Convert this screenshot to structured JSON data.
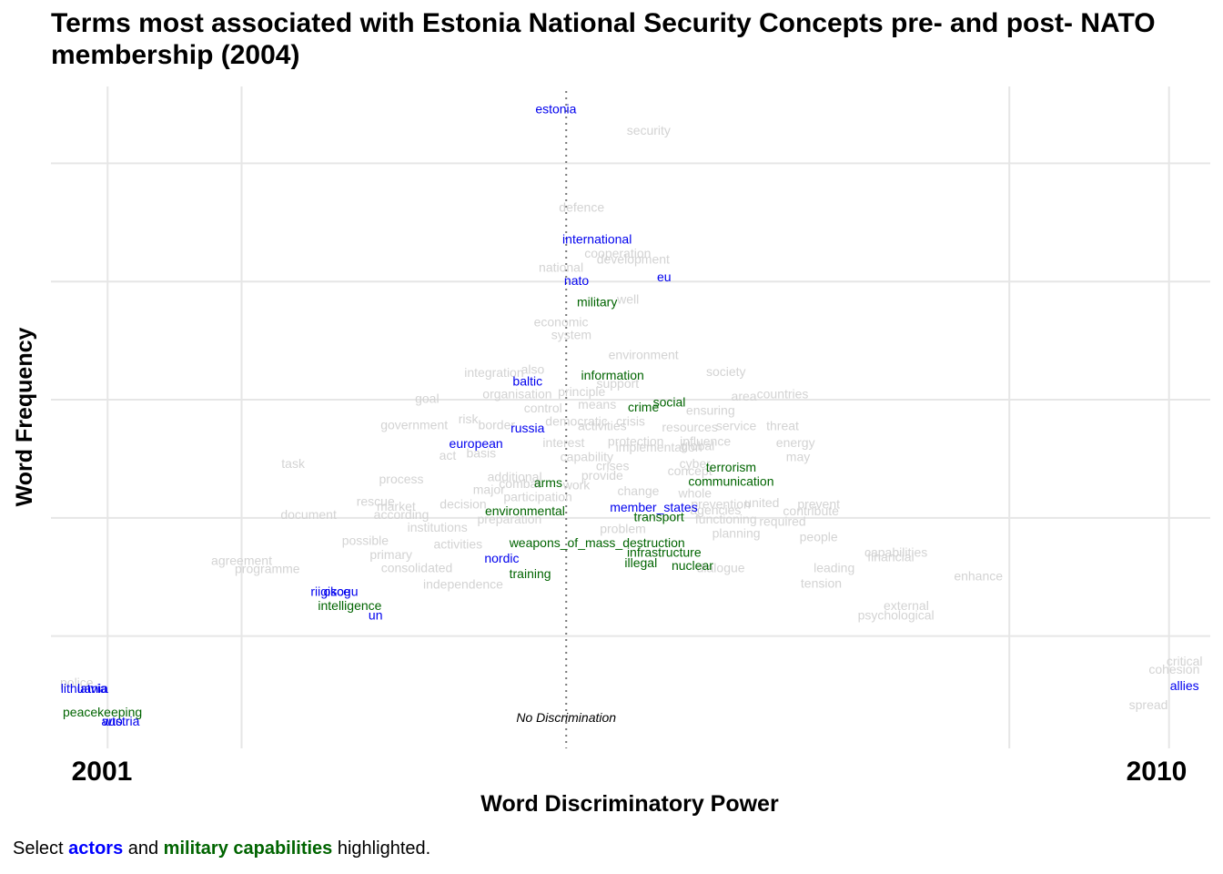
{
  "chart_data": {
    "type": "scatter",
    "title_line1": "Terms most associated with Estonia National Security Concepts pre- and post- NATO",
    "title_line2": "membership (2004)",
    "xlabel": "Word Discriminatory Power",
    "ylabel": "Word Frequency",
    "x_end_labels": [
      "2001",
      "2010"
    ],
    "reference_line_label": "No Discrimination",
    "xlim": [
      -1.0,
      1.25
    ],
    "ylim": [
      0.0,
      5.6
    ],
    "grid": true,
    "legend": "none",
    "colors": {
      "actors": "#0000ee",
      "military": "#006400",
      "other": "#d3d3d3"
    },
    "caption": {
      "prefix": "Select ",
      "actors": "actors",
      "middle": " and ",
      "military": "military capabilities",
      "suffix": " highlighted."
    },
    "actors": [
      {
        "word": "estonia",
        "x": -0.02,
        "y": 5.4
      },
      {
        "word": "international",
        "x": 0.06,
        "y": 4.3
      },
      {
        "word": "nato",
        "x": 0.02,
        "y": 3.95
      },
      {
        "word": "eu",
        "x": 0.19,
        "y": 3.98
      },
      {
        "word": "baltic",
        "x": -0.075,
        "y": 3.1
      },
      {
        "word": "russia",
        "x": -0.075,
        "y": 2.7
      },
      {
        "word": "european",
        "x": -0.175,
        "y": 2.57
      },
      {
        "word": "member_states",
        "x": 0.17,
        "y": 2.03
      },
      {
        "word": "nordic",
        "x": -0.125,
        "y": 1.6
      },
      {
        "word": "riigikogu",
        "x": -0.45,
        "y": 1.32
      },
      {
        "word": "osce",
        "x": -0.445,
        "y": 1.32
      },
      {
        "word": "un",
        "x": -0.37,
        "y": 1.12
      },
      {
        "word": "lithuania",
        "x": -0.935,
        "y": 0.5
      },
      {
        "word": "latvia",
        "x": -0.92,
        "y": 0.5
      },
      {
        "word": "austria",
        "x": -0.865,
        "y": 0.22
      },
      {
        "word": "wto",
        "x": -0.88,
        "y": 0.22
      },
      {
        "word": "allies",
        "x": 1.2,
        "y": 0.52
      }
    ],
    "military": [
      {
        "word": "military",
        "x": 0.06,
        "y": 3.77
      },
      {
        "word": "information",
        "x": 0.09,
        "y": 3.15
      },
      {
        "word": "social",
        "x": 0.2,
        "y": 2.92
      },
      {
        "word": "crime",
        "x": 0.15,
        "y": 2.88
      },
      {
        "word": "terrorism",
        "x": 0.32,
        "y": 2.37
      },
      {
        "word": "communication",
        "x": 0.32,
        "y": 2.25
      },
      {
        "word": "arms",
        "x": -0.035,
        "y": 2.24
      },
      {
        "word": "environmental",
        "x": -0.08,
        "y": 2.0
      },
      {
        "word": "transport",
        "x": 0.18,
        "y": 1.95
      },
      {
        "word": "weapons_of_mass_destruction",
        "x": 0.06,
        "y": 1.73
      },
      {
        "word": "infrastructure",
        "x": 0.19,
        "y": 1.65
      },
      {
        "word": "illegal",
        "x": 0.145,
        "y": 1.56
      },
      {
        "word": "nuclear",
        "x": 0.245,
        "y": 1.54
      },
      {
        "word": "training",
        "x": -0.07,
        "y": 1.47
      },
      {
        "word": "intelligence",
        "x": -0.42,
        "y": 1.2
      },
      {
        "word": "peacekeeping",
        "x": -0.9,
        "y": 0.3
      }
    ],
    "other_words": [
      {
        "word": "security",
        "x": 0.16,
        "y": 5.22
      },
      {
        "word": "defence",
        "x": 0.03,
        "y": 4.57
      },
      {
        "word": "cooperation",
        "x": 0.1,
        "y": 4.18
      },
      {
        "word": "development",
        "x": 0.13,
        "y": 4.13
      },
      {
        "word": "national",
        "x": -0.01,
        "y": 4.06
      },
      {
        "word": "well",
        "x": 0.12,
        "y": 3.79
      },
      {
        "word": "economic",
        "x": -0.01,
        "y": 3.6
      },
      {
        "word": "system",
        "x": 0.01,
        "y": 3.49
      },
      {
        "word": "environment",
        "x": 0.15,
        "y": 3.32
      },
      {
        "word": "integration",
        "x": -0.14,
        "y": 3.17
      },
      {
        "word": "also",
        "x": -0.065,
        "y": 3.2
      },
      {
        "word": "society",
        "x": 0.31,
        "y": 3.18
      },
      {
        "word": "support",
        "x": 0.1,
        "y": 3.08
      },
      {
        "word": "principle",
        "x": 0.03,
        "y": 3.01
      },
      {
        "word": "organisation",
        "x": -0.095,
        "y": 2.99
      },
      {
        "word": "area",
        "x": 0.345,
        "y": 2.97
      },
      {
        "word": "countries",
        "x": 0.42,
        "y": 2.99
      },
      {
        "word": "goal",
        "x": -0.27,
        "y": 2.95
      },
      {
        "word": "means",
        "x": 0.06,
        "y": 2.9
      },
      {
        "word": "control",
        "x": -0.045,
        "y": 2.87
      },
      {
        "word": "ensuring",
        "x": 0.28,
        "y": 2.85
      },
      {
        "word": "risk",
        "x": -0.19,
        "y": 2.78
      },
      {
        "word": "government",
        "x": -0.295,
        "y": 2.73
      },
      {
        "word": "border",
        "x": -0.135,
        "y": 2.73
      },
      {
        "word": "democratic",
        "x": 0.02,
        "y": 2.76
      },
      {
        "word": "crisis",
        "x": 0.125,
        "y": 2.76
      },
      {
        "word": "activities",
        "x": 0.07,
        "y": 2.72
      },
      {
        "word": "resources",
        "x": 0.24,
        "y": 2.71
      },
      {
        "word": "service",
        "x": 0.33,
        "y": 2.72
      },
      {
        "word": "threat",
        "x": 0.42,
        "y": 2.72
      },
      {
        "word": "protection",
        "x": 0.135,
        "y": 2.59
      },
      {
        "word": "influence",
        "x": 0.27,
        "y": 2.59
      },
      {
        "word": "global",
        "x": 0.255,
        "y": 2.55
      },
      {
        "word": "energy",
        "x": 0.445,
        "y": 2.58
      },
      {
        "word": "implementation",
        "x": 0.18,
        "y": 2.54
      },
      {
        "word": "interest",
        "x": -0.005,
        "y": 2.58
      },
      {
        "word": "act",
        "x": -0.23,
        "y": 2.47
      },
      {
        "word": "basis",
        "x": -0.165,
        "y": 2.49
      },
      {
        "word": "capability",
        "x": 0.04,
        "y": 2.46
      },
      {
        "word": "may",
        "x": 0.45,
        "y": 2.46
      },
      {
        "word": "task",
        "x": -0.53,
        "y": 2.4
      },
      {
        "word": "cyber",
        "x": 0.25,
        "y": 2.4
      },
      {
        "word": "crises",
        "x": 0.09,
        "y": 2.38
      },
      {
        "word": "concept",
        "x": 0.24,
        "y": 2.34
      },
      {
        "word": "provide",
        "x": 0.07,
        "y": 2.3
      },
      {
        "word": "process",
        "x": -0.32,
        "y": 2.27
      },
      {
        "word": "additional",
        "x": -0.1,
        "y": 2.29
      },
      {
        "word": "combat",
        "x": -0.09,
        "y": 2.23
      },
      {
        "word": "work",
        "x": 0.02,
        "y": 2.22
      },
      {
        "word": "major",
        "x": -0.15,
        "y": 2.18
      },
      {
        "word": "change",
        "x": 0.14,
        "y": 2.17
      },
      {
        "word": "whole",
        "x": 0.25,
        "y": 2.15
      },
      {
        "word": "participation",
        "x": -0.055,
        "y": 2.12
      },
      {
        "word": "prevention",
        "x": 0.3,
        "y": 2.06
      },
      {
        "word": "united",
        "x": 0.38,
        "y": 2.07
      },
      {
        "word": "prevent",
        "x": 0.49,
        "y": 2.06
      },
      {
        "word": "rescue",
        "x": -0.37,
        "y": 2.08
      },
      {
        "word": "market",
        "x": -0.33,
        "y": 2.04
      },
      {
        "word": "decision",
        "x": -0.2,
        "y": 2.06
      },
      {
        "word": "agencies",
        "x": 0.29,
        "y": 2.01
      },
      {
        "word": "contribute",
        "x": 0.475,
        "y": 2.0
      },
      {
        "word": "document",
        "x": -0.5,
        "y": 1.97
      },
      {
        "word": "according",
        "x": -0.32,
        "y": 1.97
      },
      {
        "word": "preparation",
        "x": -0.11,
        "y": 1.93
      },
      {
        "word": "functioning",
        "x": 0.31,
        "y": 1.93
      },
      {
        "word": "required",
        "x": 0.42,
        "y": 1.91
      },
      {
        "word": "institutions",
        "x": -0.25,
        "y": 1.86
      },
      {
        "word": "problem",
        "x": 0.11,
        "y": 1.85
      },
      {
        "word": "planning",
        "x": 0.33,
        "y": 1.81
      },
      {
        "word": "people",
        "x": 0.49,
        "y": 1.78
      },
      {
        "word": "possible",
        "x": -0.39,
        "y": 1.75
      },
      {
        "word": "activities2",
        "x": -0.21,
        "y": 1.72
      },
      {
        "word": "primary",
        "x": -0.34,
        "y": 1.63
      },
      {
        "word": "capabilities",
        "x": 0.64,
        "y": 1.65
      },
      {
        "word": "financial",
        "x": 0.63,
        "y": 1.61
      },
      {
        "word": "agreement",
        "x": -0.63,
        "y": 1.58
      },
      {
        "word": "programme",
        "x": -0.58,
        "y": 1.51
      },
      {
        "word": "consolidated",
        "x": -0.29,
        "y": 1.52
      },
      {
        "word": "dialogue",
        "x": 0.3,
        "y": 1.52
      },
      {
        "word": "leading",
        "x": 0.52,
        "y": 1.52
      },
      {
        "word": "enhance",
        "x": 0.8,
        "y": 1.45
      },
      {
        "word": "tension",
        "x": 0.495,
        "y": 1.39
      },
      {
        "word": "independence",
        "x": -0.2,
        "y": 1.38
      },
      {
        "word": "external",
        "x": 0.66,
        "y": 1.2
      },
      {
        "word": "psychological",
        "x": 0.64,
        "y": 1.12
      },
      {
        "word": "critical",
        "x": 1.2,
        "y": 0.73
      },
      {
        "word": "cohesion",
        "x": 1.18,
        "y": 0.66
      },
      {
        "word": "police",
        "x": -0.95,
        "y": 0.55
      },
      {
        "word": "spread",
        "x": 1.13,
        "y": 0.36
      }
    ]
  }
}
